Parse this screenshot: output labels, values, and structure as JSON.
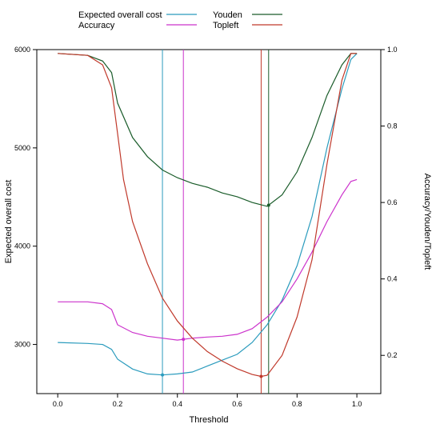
{
  "chart_data": {
    "type": "line",
    "xlabel": "Threshold",
    "ylabel_left": "Expected overall cost",
    "ylabel_right": "Accuracy/Youden/Topleft",
    "xlim": [
      -0.07,
      1.08
    ],
    "ylim_left": [
      2500,
      6000
    ],
    "ylim_right": [
      0.1,
      1.0
    ],
    "yticks_left": [
      3000,
      4000,
      5000,
      6000
    ],
    "yticks_right": [
      0.2,
      0.4,
      0.6,
      0.8,
      1.0
    ],
    "xticks": [
      0.0,
      0.2,
      0.4,
      0.6,
      0.8,
      1.0
    ],
    "xtick_labels": [
      "0.0",
      "0.2",
      "0.4",
      "0.6",
      "0.8",
      "1.0"
    ],
    "ytick_labels_left": [
      "3000",
      "4000",
      "5000",
      "6000"
    ],
    "ytick_labels_right": [
      "0.2",
      "0.4",
      "0.6",
      "0.8",
      "1.0"
    ],
    "legend_position": "top",
    "series": [
      {
        "name": "Expected overall cost",
        "axis": "left",
        "color": "#2a9bbd",
        "x": [
          0.0,
          0.1,
          0.15,
          0.18,
          0.2,
          0.25,
          0.3,
          0.35,
          0.4,
          0.45,
          0.5,
          0.55,
          0.6,
          0.65,
          0.7,
          0.75,
          0.8,
          0.85,
          0.9,
          0.95,
          0.98,
          1.0
        ],
        "y": [
          3020,
          3010,
          3000,
          2950,
          2850,
          2750,
          2700,
          2690,
          2700,
          2720,
          2780,
          2840,
          2900,
          3020,
          3200,
          3450,
          3800,
          4300,
          5000,
          5600,
          5900,
          5960
        ]
      },
      {
        "name": "Accuracy",
        "axis": "right",
        "color": "#cc33cc",
        "x": [
          0.0,
          0.1,
          0.15,
          0.18,
          0.2,
          0.25,
          0.3,
          0.35,
          0.4,
          0.45,
          0.5,
          0.55,
          0.6,
          0.65,
          0.7,
          0.75,
          0.8,
          0.85,
          0.9,
          0.95,
          0.98,
          1.0
        ],
        "y": [
          0.34,
          0.34,
          0.335,
          0.32,
          0.28,
          0.26,
          0.25,
          0.245,
          0.24,
          0.245,
          0.248,
          0.25,
          0.255,
          0.27,
          0.3,
          0.34,
          0.4,
          0.47,
          0.55,
          0.62,
          0.655,
          0.66
        ]
      },
      {
        "name": "Youden",
        "axis": "right",
        "color": "#1a5c2a",
        "x": [
          0.0,
          0.1,
          0.15,
          0.18,
          0.2,
          0.25,
          0.3,
          0.35,
          0.4,
          0.45,
          0.5,
          0.55,
          0.6,
          0.65,
          0.7,
          0.75,
          0.8,
          0.85,
          0.9,
          0.95,
          0.98,
          1.0
        ],
        "y": [
          0.99,
          0.985,
          0.97,
          0.94,
          0.86,
          0.77,
          0.72,
          0.685,
          0.665,
          0.65,
          0.64,
          0.625,
          0.615,
          0.6,
          0.59,
          0.62,
          0.68,
          0.77,
          0.88,
          0.96,
          0.99,
          0.99
        ]
      },
      {
        "name": "Topleft",
        "axis": "right",
        "color": "#c0392b",
        "x": [
          0.0,
          0.1,
          0.15,
          0.18,
          0.2,
          0.22,
          0.25,
          0.3,
          0.35,
          0.4,
          0.45,
          0.5,
          0.55,
          0.6,
          0.65,
          0.68,
          0.7,
          0.75,
          0.8,
          0.85,
          0.9,
          0.95,
          0.98,
          1.0
        ],
        "y": [
          0.99,
          0.985,
          0.96,
          0.9,
          0.78,
          0.66,
          0.55,
          0.44,
          0.35,
          0.29,
          0.245,
          0.21,
          0.185,
          0.165,
          0.15,
          0.145,
          0.148,
          0.2,
          0.3,
          0.45,
          0.7,
          0.92,
          0.99,
          0.99
        ]
      }
    ],
    "vertical_lines": [
      {
        "x": 0.35,
        "series": "Expected overall cost",
        "color": "#2a9bbd"
      },
      {
        "x": 0.42,
        "series": "Accuracy",
        "color": "#cc33cc"
      },
      {
        "x": 0.68,
        "series": "Topleft",
        "color": "#c0392b"
      },
      {
        "x": 0.705,
        "series": "Youden",
        "color": "#1a5c2a"
      }
    ]
  }
}
